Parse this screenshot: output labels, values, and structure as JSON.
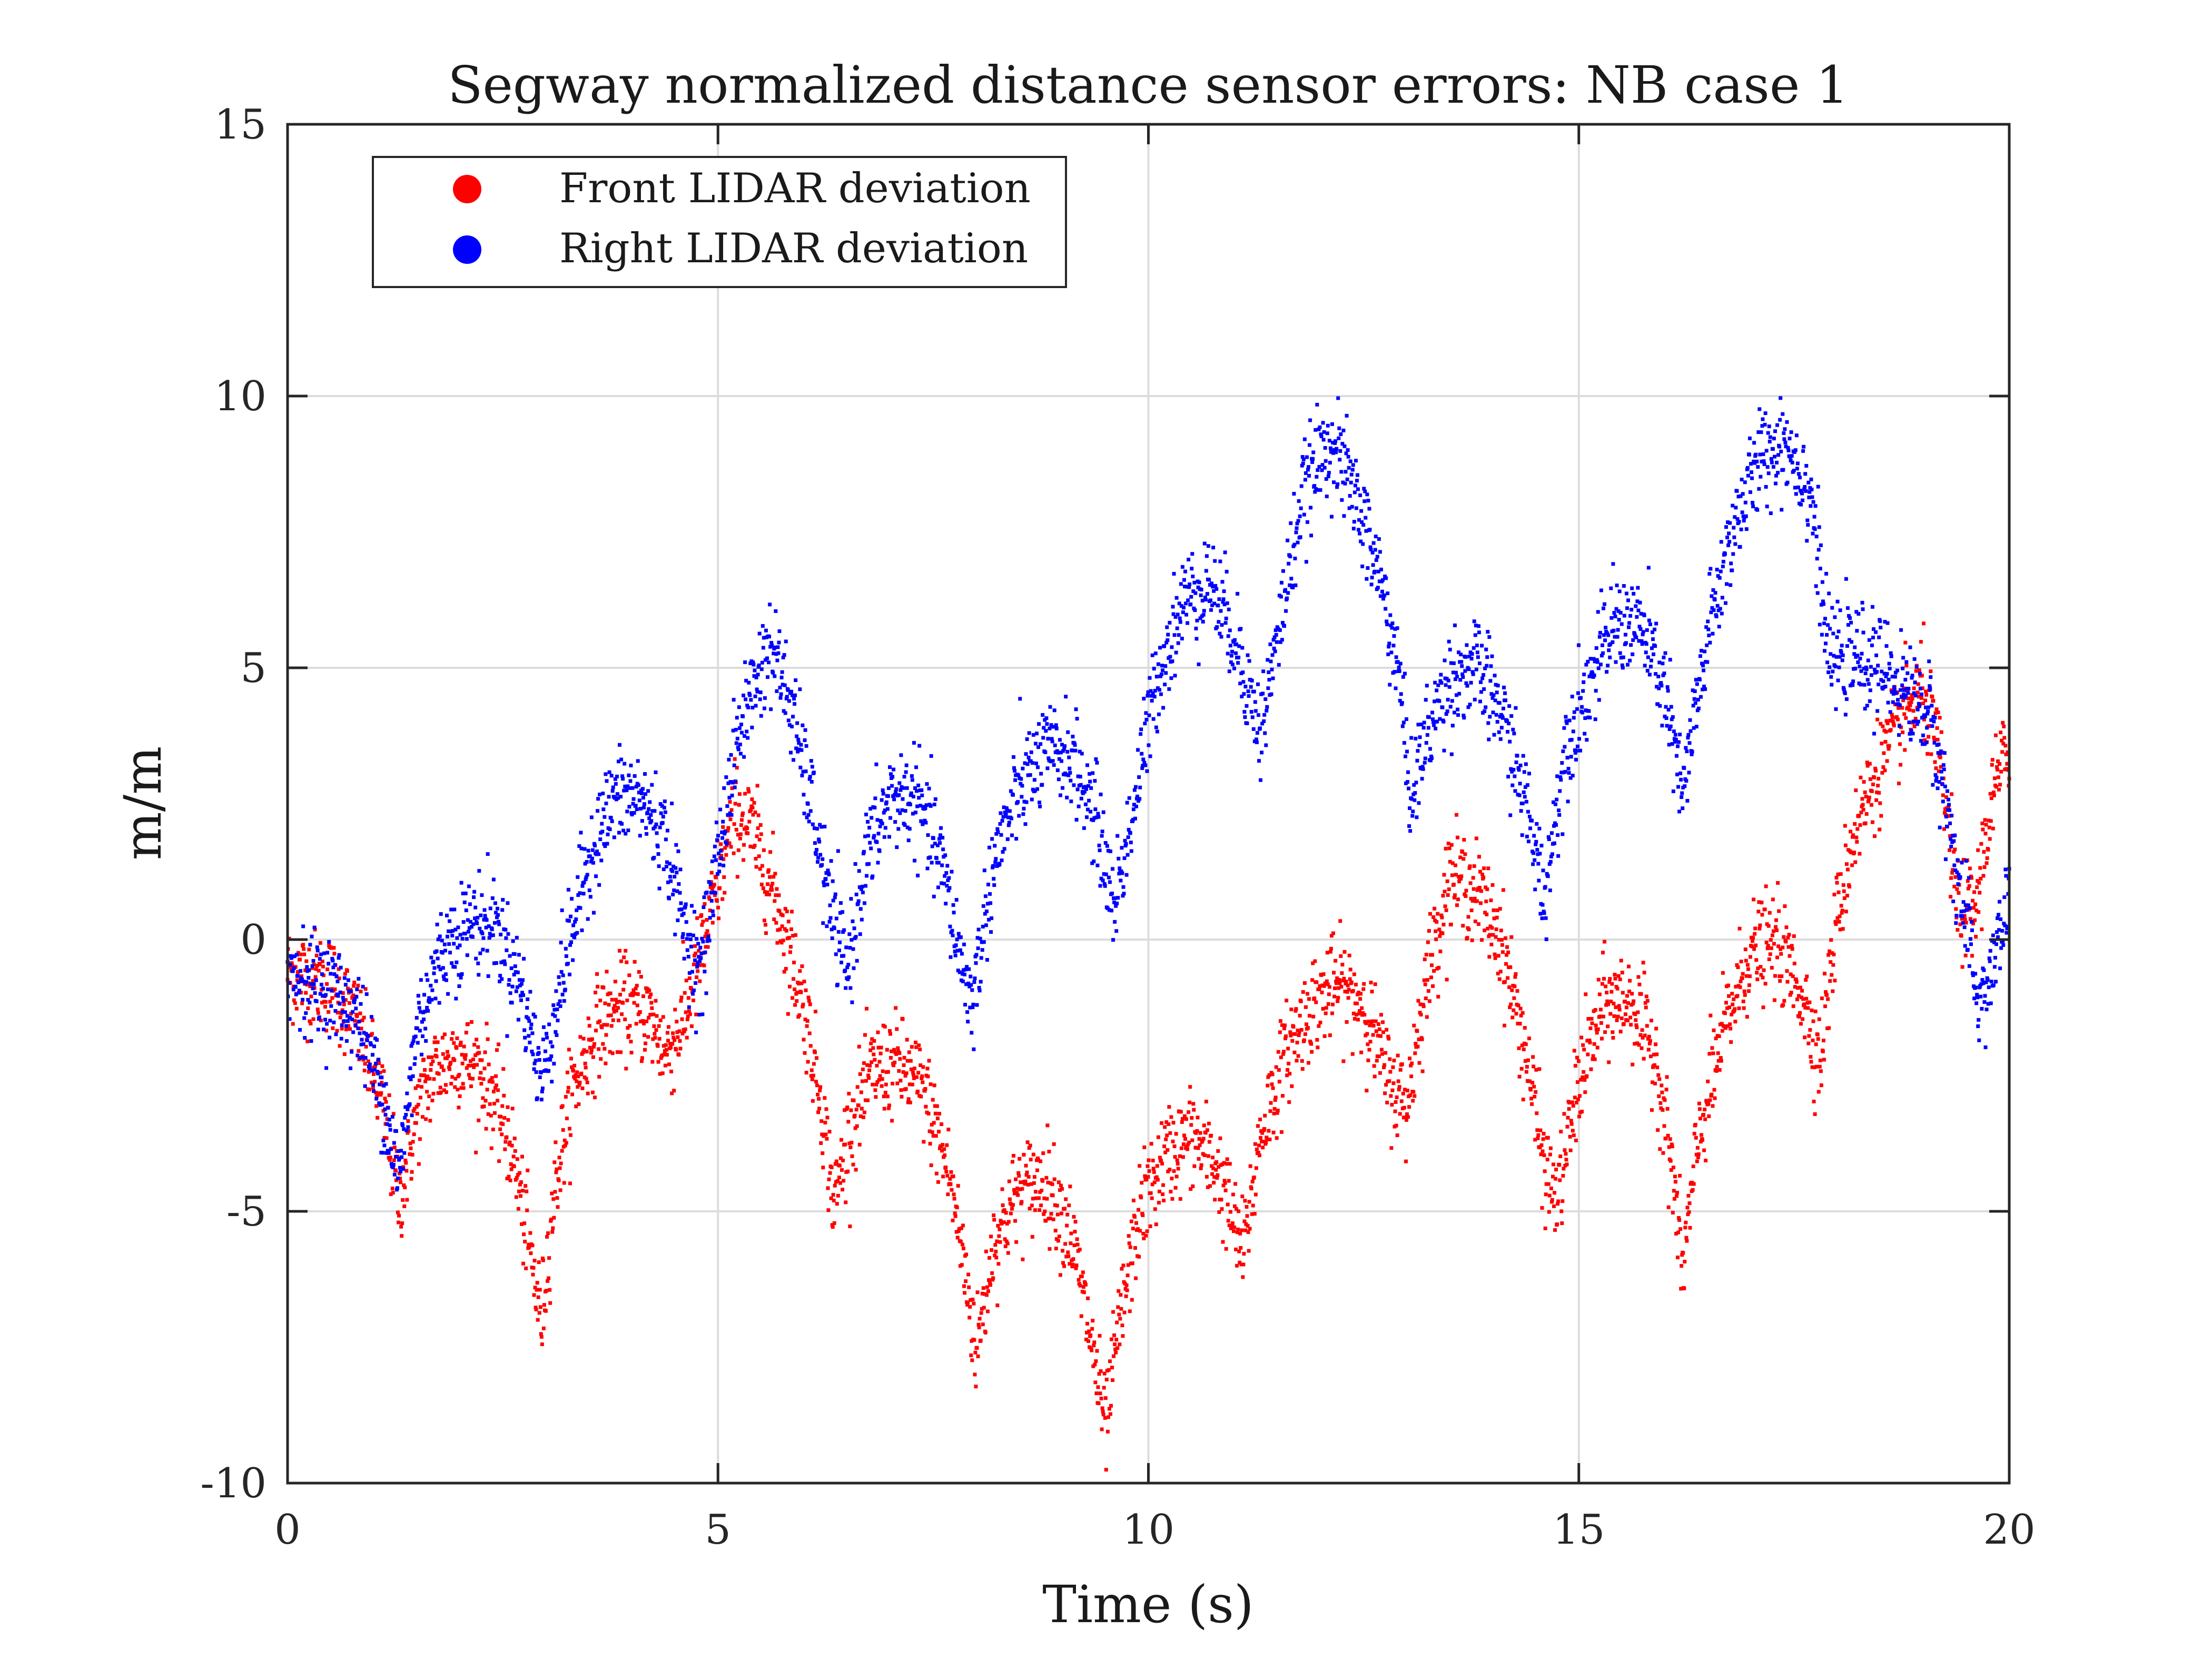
{
  "chart_data": {
    "type": "scatter",
    "title": "Segway normalized distance sensor errors: NB case 1",
    "xlabel": "Time (s)",
    "ylabel": "m/m",
    "xlim": [
      0,
      20
    ],
    "ylim": [
      -10,
      15
    ],
    "xticks": [
      0,
      5,
      10,
      15,
      20
    ],
    "yticks": [
      -10,
      -5,
      0,
      5,
      10,
      15
    ],
    "xtick_labels": [
      "0",
      "5",
      "10",
      "15",
      "20"
    ],
    "ytick_labels": [
      "-10",
      "-5",
      "0",
      "5",
      "10",
      "15"
    ],
    "grid": true,
    "legend_position": "top-left",
    "series": [
      {
        "name": "Front LIDAR deviation",
        "color": "#ff0000",
        "trend": [
          [
            0,
            -0.6
          ],
          [
            0.5,
            -0.8
          ],
          [
            0.8,
            -1.5
          ],
          [
            1.1,
            -3.0
          ],
          [
            1.3,
            -4.8
          ],
          [
            1.5,
            -3.2
          ],
          [
            1.7,
            -2.4
          ],
          [
            2.0,
            -2.1
          ],
          [
            2.3,
            -2.5
          ],
          [
            2.6,
            -3.8
          ],
          [
            2.8,
            -5.6
          ],
          [
            2.95,
            -7.0
          ],
          [
            3.1,
            -4.6
          ],
          [
            3.3,
            -2.8
          ],
          [
            3.6,
            -1.6
          ],
          [
            3.9,
            -1.2
          ],
          [
            4.2,
            -1.4
          ],
          [
            4.4,
            -2.1
          ],
          [
            4.6,
            -1.5
          ],
          [
            4.8,
            -0.3
          ],
          [
            5.0,
            1.0
          ],
          [
            5.2,
            2.4
          ],
          [
            5.4,
            2.0
          ],
          [
            5.7,
            0.6
          ],
          [
            6.0,
            -1.2
          ],
          [
            6.2,
            -3.0
          ],
          [
            6.35,
            -4.9
          ],
          [
            6.5,
            -3.6
          ],
          [
            6.8,
            -2.4
          ],
          [
            7.1,
            -2.3
          ],
          [
            7.4,
            -2.8
          ],
          [
            7.7,
            -4.4
          ],
          [
            7.9,
            -6.4
          ],
          [
            8.0,
            -7.6
          ],
          [
            8.2,
            -5.6
          ],
          [
            8.5,
            -4.6
          ],
          [
            8.8,
            -4.4
          ],
          [
            9.1,
            -5.4
          ],
          [
            9.35,
            -7.5
          ],
          [
            9.5,
            -9.0
          ],
          [
            9.65,
            -7.2
          ],
          [
            9.9,
            -5.0
          ],
          [
            10.2,
            -4.0
          ],
          [
            10.5,
            -3.6
          ],
          [
            10.8,
            -4.2
          ],
          [
            11.1,
            -5.8
          ],
          [
            11.3,
            -3.6
          ],
          [
            11.6,
            -2.1
          ],
          [
            11.9,
            -1.2
          ],
          [
            12.2,
            -0.8
          ],
          [
            12.5,
            -1.2
          ],
          [
            12.8,
            -2.6
          ],
          [
            13.0,
            -3.1
          ],
          [
            13.2,
            -1.0
          ],
          [
            13.5,
            1.2
          ],
          [
            13.8,
            0.9
          ],
          [
            14.1,
            0.0
          ],
          [
            14.4,
            -2.2
          ],
          [
            14.6,
            -4.2
          ],
          [
            14.75,
            -4.8
          ],
          [
            15.0,
            -2.6
          ],
          [
            15.3,
            -1.2
          ],
          [
            15.6,
            -1.1
          ],
          [
            15.9,
            -2.2
          ],
          [
            16.1,
            -4.4
          ],
          [
            16.2,
            -6.1
          ],
          [
            16.4,
            -3.6
          ],
          [
            16.7,
            -1.6
          ],
          [
            17.0,
            -0.2
          ],
          [
            17.3,
            -0.1
          ],
          [
            17.6,
            -1.0
          ],
          [
            17.8,
            -2.2
          ],
          [
            18.0,
            0.4
          ],
          [
            18.2,
            2.0
          ],
          [
            18.5,
            3.2
          ],
          [
            18.8,
            4.2
          ],
          [
            19.0,
            4.6
          ],
          [
            19.2,
            3.2
          ],
          [
            19.4,
            0.6
          ],
          [
            19.6,
            0.5
          ],
          [
            19.8,
            2.6
          ],
          [
            20.0,
            3.6
          ]
        ]
      },
      {
        "name": "Right LIDAR deviation",
        "color": "#0000ff",
        "trend": [
          [
            0,
            -0.6
          ],
          [
            0.5,
            -0.9
          ],
          [
            0.8,
            -1.4
          ],
          [
            1.1,
            -2.8
          ],
          [
            1.3,
            -4.4
          ],
          [
            1.5,
            -1.6
          ],
          [
            1.8,
            -0.2
          ],
          [
            2.1,
            0.3
          ],
          [
            2.4,
            0.3
          ],
          [
            2.7,
            -0.8
          ],
          [
            2.95,
            -2.6
          ],
          [
            3.2,
            -0.6
          ],
          [
            3.5,
            1.5
          ],
          [
            3.8,
            2.6
          ],
          [
            4.1,
            2.6
          ],
          [
            4.4,
            1.8
          ],
          [
            4.6,
            0.3
          ],
          [
            4.8,
            -0.6
          ],
          [
            5.0,
            1.6
          ],
          [
            5.3,
            4.2
          ],
          [
            5.6,
            5.4
          ],
          [
            5.8,
            4.6
          ],
          [
            6.1,
            2.4
          ],
          [
            6.3,
            0.6
          ],
          [
            6.5,
            -0.6
          ],
          [
            6.7,
            1.4
          ],
          [
            7.0,
            2.6
          ],
          [
            7.3,
            2.6
          ],
          [
            7.6,
            1.4
          ],
          [
            7.8,
            -0.2
          ],
          [
            7.95,
            -1.2
          ],
          [
            8.2,
            1.4
          ],
          [
            8.5,
            2.8
          ],
          [
            8.8,
            3.4
          ],
          [
            9.1,
            3.4
          ],
          [
            9.4,
            2.2
          ],
          [
            9.6,
            0.6
          ],
          [
            9.85,
            2.6
          ],
          [
            10.1,
            4.8
          ],
          [
            10.4,
            6.2
          ],
          [
            10.7,
            6.6
          ],
          [
            11.0,
            5.6
          ],
          [
            11.3,
            3.8
          ],
          [
            11.55,
            6.0
          ],
          [
            11.8,
            8.2
          ],
          [
            12.1,
            9.2
          ],
          [
            12.4,
            8.2
          ],
          [
            12.7,
            6.6
          ],
          [
            12.9,
            5.0
          ],
          [
            13.05,
            2.6
          ],
          [
            13.2,
            3.6
          ],
          [
            13.5,
            4.8
          ],
          [
            13.8,
            5.0
          ],
          [
            14.1,
            4.2
          ],
          [
            14.4,
            2.4
          ],
          [
            14.6,
            0.8
          ],
          [
            14.85,
            3.6
          ],
          [
            15.1,
            4.6
          ],
          [
            15.4,
            5.8
          ],
          [
            15.7,
            5.8
          ],
          [
            16.0,
            4.6
          ],
          [
            16.2,
            2.6
          ],
          [
            16.5,
            5.6
          ],
          [
            16.8,
            7.6
          ],
          [
            17.1,
            8.8
          ],
          [
            17.4,
            9.2
          ],
          [
            17.7,
            8.2
          ],
          [
            17.9,
            5.2
          ],
          [
            18.2,
            5.2
          ],
          [
            18.5,
            5.0
          ],
          [
            18.8,
            4.6
          ],
          [
            19.1,
            4.0
          ],
          [
            19.3,
            2.2
          ],
          [
            19.5,
            0.2
          ],
          [
            19.65,
            -1.2
          ],
          [
            19.8,
            -0.6
          ],
          [
            20.0,
            0.8
          ]
        ]
      }
    ]
  }
}
